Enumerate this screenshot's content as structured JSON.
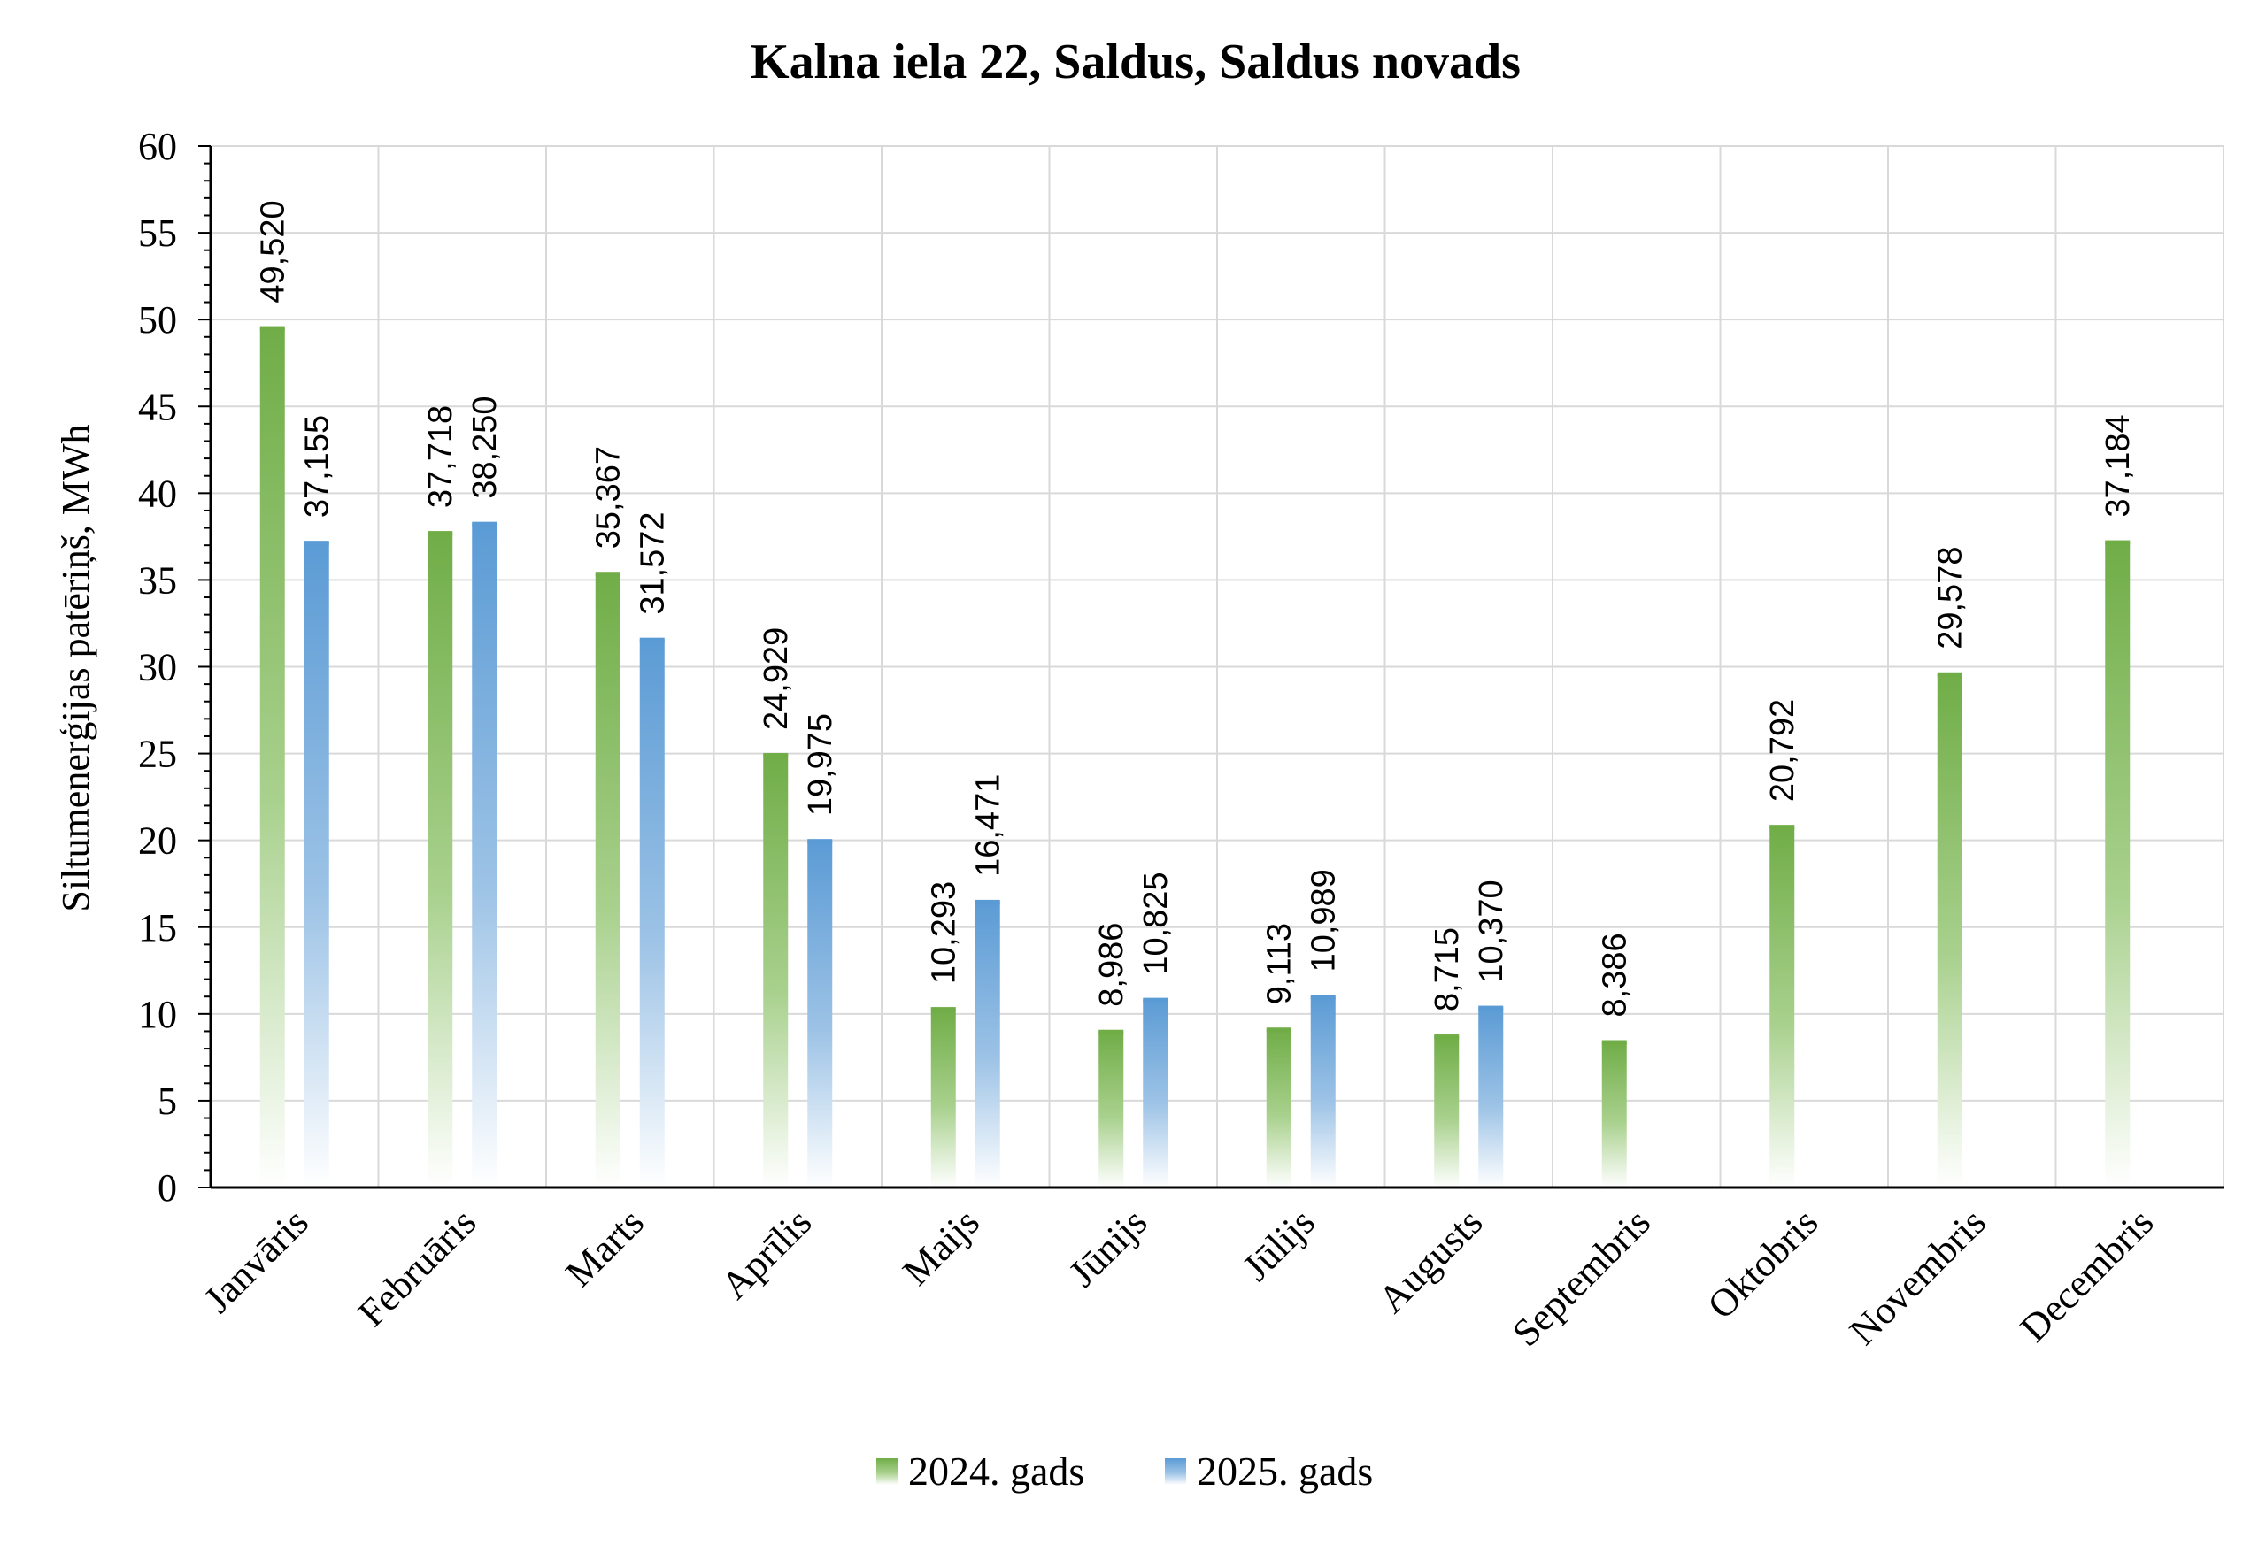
{
  "chart_data": {
    "type": "bar",
    "title": "Kalna iela 22, Saldus, Saldus novads",
    "xlabel": "",
    "ylabel": "Siltumenerģijas patēriņš, MWh",
    "ylim": [
      0,
      60
    ],
    "ytick_step": 5,
    "categories": [
      "Janvāris",
      "Februāris",
      "Marts",
      "Aprīlis",
      "Maijs",
      "Jūnijs",
      "Jūlijs",
      "Augusts",
      "Septembris",
      "Oktobris",
      "Novembris",
      "Decembris"
    ],
    "series": [
      {
        "name": "2024. gads",
        "color": "#70ad47",
        "values": [
          49.52,
          37.718,
          35.367,
          24.929,
          10.293,
          8.986,
          9.113,
          8.715,
          8.386,
          20.792,
          29.578,
          37.184
        ],
        "labels": [
          "49,520",
          "37,718",
          "35,367",
          "24,929",
          "10,293",
          "8,986",
          "9,113",
          "8,715",
          "8,386",
          "20,792",
          "29,578",
          "37,184"
        ]
      },
      {
        "name": "2025. gads",
        "color": "#5b9bd5",
        "values": [
          37.155,
          38.25,
          31.572,
          19.975,
          16.471,
          10.825,
          10.989,
          10.37,
          null,
          null,
          null,
          null
        ],
        "labels": [
          "37,155",
          "38,250",
          "31,572",
          "19,975",
          "16,471",
          "10,825",
          "10,989",
          "10,370",
          "",
          "",
          "",
          ""
        ]
      }
    ],
    "grid": true,
    "legend": "bottom-center"
  }
}
